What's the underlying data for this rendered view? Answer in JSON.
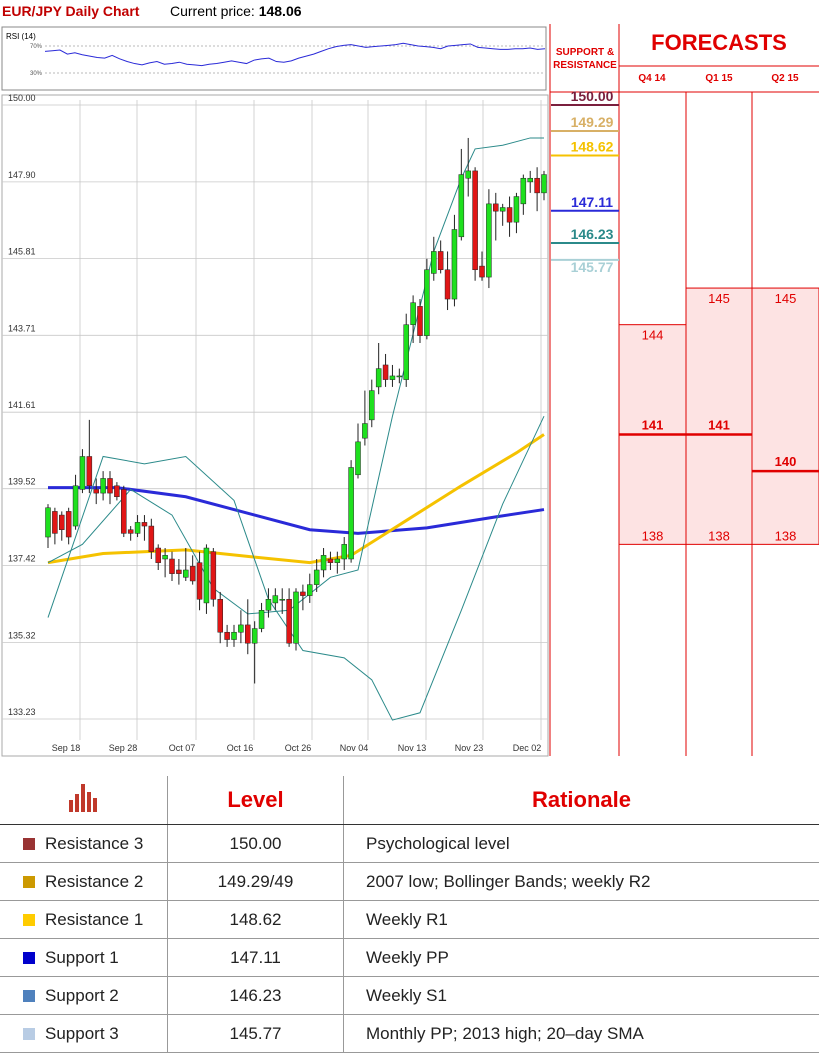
{
  "header": {
    "title": "EUR/JPY Daily Chart",
    "price_label": "Current price:",
    "price_value": "148.06"
  },
  "rsi": {
    "label": "RSI (14)",
    "levels": [
      "70%",
      "30%"
    ],
    "level_values": [
      70,
      30
    ],
    "values": [
      62,
      63,
      64,
      58,
      60,
      57,
      55,
      53,
      52,
      56,
      51,
      47,
      44,
      42,
      45,
      47,
      43,
      44,
      46,
      43,
      42,
      41,
      43,
      44,
      46,
      48,
      46,
      44,
      49,
      51,
      52,
      47,
      46,
      48,
      52,
      55,
      58,
      62,
      66,
      69,
      71,
      72,
      70,
      68,
      69,
      70,
      71,
      72,
      74,
      72,
      70,
      69,
      68,
      66,
      70,
      71,
      72,
      73,
      68,
      67,
      66,
      65,
      65,
      66,
      66,
      67,
      65,
      66
    ]
  },
  "chart_data": {
    "type": "candlestick",
    "title": "EUR/JPY Daily Chart",
    "ylim": [
      133.23,
      150.0
    ],
    "y_ticks": [
      "150.00",
      "147.90",
      "145.81",
      "143.71",
      "141.61",
      "139.52",
      "137.42",
      "135.32",
      "133.23"
    ],
    "x_ticks": [
      "Sep 18",
      "Sep 28",
      "Oct 07",
      "Oct 16",
      "Oct 26",
      "Nov 04",
      "Nov 13",
      "Nov 23",
      "Dec 02"
    ],
    "candles": [
      [
        138.2,
        139.0,
        139.1,
        137.9
      ],
      [
        138.9,
        138.3,
        139.0,
        138.0
      ],
      [
        138.8,
        138.4,
        138.9,
        138.1
      ],
      [
        138.9,
        138.2,
        139.0,
        138.0
      ],
      [
        138.5,
        139.6,
        139.9,
        138.4
      ],
      [
        139.5,
        140.4,
        140.6,
        139.4
      ],
      [
        140.4,
        139.6,
        141.4,
        139.4
      ],
      [
        139.5,
        139.4,
        139.8,
        139.1
      ],
      [
        139.4,
        139.8,
        140.0,
        139.2
      ],
      [
        139.8,
        139.4,
        140.0,
        139.1
      ],
      [
        139.6,
        139.3,
        139.7,
        139.2
      ],
      [
        139.5,
        138.3,
        139.6,
        138.2
      ],
      [
        138.4,
        138.3,
        138.5,
        138.1
      ],
      [
        138.3,
        138.6,
        138.8,
        138.2
      ],
      [
        138.6,
        138.5,
        138.8,
        138.1
      ],
      [
        138.5,
        137.8,
        138.7,
        137.6
      ],
      [
        137.9,
        137.5,
        138.0,
        137.3
      ],
      [
        137.6,
        137.7,
        137.9,
        137.1
      ],
      [
        137.6,
        137.2,
        137.8,
        137.0
      ],
      [
        137.3,
        137.2,
        137.6,
        136.9
      ],
      [
        137.1,
        137.3,
        137.9,
        137.0
      ],
      [
        137.4,
        137.0,
        137.7,
        136.9
      ],
      [
        137.5,
        136.5,
        137.8,
        136.2
      ],
      [
        136.4,
        137.9,
        138.0,
        136.1
      ],
      [
        137.8,
        136.5,
        137.9,
        136.3
      ],
      [
        136.5,
        135.6,
        136.7,
        135.3
      ],
      [
        135.6,
        135.4,
        135.8,
        135.2
      ],
      [
        135.4,
        135.6,
        135.8,
        135.2
      ],
      [
        135.6,
        135.8,
        136.2,
        135.3
      ],
      [
        135.8,
        135.3,
        136.5,
        135.0
      ],
      [
        135.3,
        135.7,
        135.9,
        134.2
      ],
      [
        135.7,
        136.2,
        136.4,
        135.6
      ],
      [
        136.2,
        136.5,
        136.8,
        136.0
      ],
      [
        136.4,
        136.6,
        136.8,
        136.2
      ],
      [
        136.5,
        136.5,
        136.8,
        136.1
      ],
      [
        136.5,
        135.3,
        136.8,
        135.2
      ],
      [
        135.3,
        136.7,
        136.8,
        135.1
      ],
      [
        136.7,
        136.6,
        136.9,
        136.2
      ],
      [
        136.6,
        136.9,
        137.2,
        136.4
      ],
      [
        136.9,
        137.3,
        137.6,
        136.7
      ],
      [
        137.3,
        137.7,
        137.9,
        137.1
      ],
      [
        137.6,
        137.5,
        137.8,
        137.3
      ],
      [
        137.5,
        137.6,
        137.8,
        137.2
      ],
      [
        137.6,
        138.0,
        138.2,
        137.3
      ],
      [
        137.6,
        140.1,
        140.3,
        137.5
      ],
      [
        139.9,
        140.8,
        141.3,
        139.8
      ],
      [
        140.9,
        141.3,
        142.2,
        140.7
      ],
      [
        141.4,
        142.2,
        142.5,
        141.2
      ],
      [
        142.3,
        142.8,
        143.5,
        142.1
      ],
      [
        142.9,
        142.5,
        143.2,
        142.3
      ],
      [
        142.5,
        142.6,
        142.9,
        142.3
      ],
      [
        142.6,
        142.6,
        142.8,
        142.4
      ],
      [
        142.5,
        144.0,
        144.3,
        142.3
      ],
      [
        144.0,
        144.6,
        144.8,
        143.5
      ],
      [
        144.5,
        143.7,
        144.7,
        143.5
      ],
      [
        143.7,
        145.5,
        145.8,
        143.6
      ],
      [
        145.4,
        146.0,
        146.4,
        145.2
      ],
      [
        146.0,
        145.5,
        146.3,
        145.4
      ],
      [
        145.5,
        144.7,
        146.0,
        144.4
      ],
      [
        144.7,
        146.6,
        147.0,
        144.5
      ],
      [
        146.4,
        148.1,
        148.8,
        146.3
      ],
      [
        148.0,
        148.2,
        149.1,
        147.5
      ],
      [
        148.2,
        145.5,
        148.3,
        145.2
      ],
      [
        145.6,
        145.3,
        146.0,
        145.2
      ],
      [
        145.3,
        147.3,
        147.7,
        145.0
      ],
      [
        147.3,
        147.1,
        147.6,
        146.3
      ],
      [
        147.1,
        147.2,
        147.3,
        146.7
      ],
      [
        147.2,
        146.8,
        147.5,
        146.4
      ],
      [
        146.8,
        147.5,
        147.6,
        146.5
      ],
      [
        147.3,
        148.0,
        148.1,
        147.0
      ],
      [
        147.9,
        148.0,
        148.2,
        147.6
      ],
      [
        148.0,
        147.6,
        148.3,
        147.1
      ],
      [
        147.6,
        148.1,
        148.2,
        147.4
      ]
    ],
    "series": [
      {
        "name": "",
        "color": "#2a2ad8",
        "values": [
          [
            0,
            139.55
          ],
          [
            10,
            139.55
          ],
          [
            20,
            139.3
          ],
          [
            30,
            138.8
          ],
          [
            38,
            138.4
          ],
          [
            45,
            138.3
          ],
          [
            55,
            138.45
          ],
          [
            65,
            138.75
          ],
          [
            72,
            138.95
          ]
        ]
      },
      {
        "name": "",
        "color": "#f5c200",
        "values": [
          [
            0,
            137.5
          ],
          [
            8,
            137.75
          ],
          [
            20,
            137.85
          ],
          [
            30,
            137.65
          ],
          [
            38,
            137.5
          ],
          [
            44,
            137.7
          ],
          [
            52,
            138.65
          ],
          [
            60,
            139.6
          ],
          [
            68,
            140.5
          ],
          [
            72,
            141.0
          ]
        ]
      },
      {
        "name": "",
        "color": "#2b8a8a",
        "values": [
          [
            0,
            136.0
          ],
          [
            8,
            140.4
          ],
          [
            14,
            140.2
          ],
          [
            20,
            140.4
          ],
          [
            27,
            139.2
          ],
          [
            32,
            136.5
          ],
          [
            37,
            135.1
          ],
          [
            43,
            134.9
          ],
          [
            47,
            134.3
          ],
          [
            50,
            133.2
          ],
          [
            54,
            133.4
          ],
          [
            60,
            136.2
          ],
          [
            66,
            139.1
          ],
          [
            72,
            141.5
          ]
        ]
      },
      {
        "name": "",
        "color": "#2b8a8a",
        "values": [
          [
            0,
            137.5
          ],
          [
            5,
            138.0
          ],
          [
            12,
            139.5
          ],
          [
            18,
            138.8
          ],
          [
            24,
            136.8
          ],
          [
            29,
            136.1
          ],
          [
            35,
            136.2
          ],
          [
            41,
            137.1
          ],
          [
            45,
            137.3
          ],
          [
            50,
            141.5
          ],
          [
            56,
            146.0
          ],
          [
            60,
            148.0
          ],
          [
            62,
            148.8
          ],
          [
            66,
            148.9
          ],
          [
            70,
            149.1
          ],
          [
            72,
            149.1
          ]
        ]
      }
    ]
  },
  "side_levels": {
    "header": "SUPPORT & RESISTANCE",
    "items": [
      {
        "value": 150.0,
        "text": "150.00",
        "color": "#7a1f3d"
      },
      {
        "value": 149.29,
        "text": "149.29",
        "color": "#d8b066"
      },
      {
        "value": 148.62,
        "text": "148.62",
        "color": "#f5c200"
      },
      {
        "value": 147.11,
        "text": "147.11",
        "color": "#2a2ad8"
      },
      {
        "value": 146.23,
        "text": "146.23",
        "color": "#2b8a8a"
      },
      {
        "value": 145.77,
        "text": "145.77",
        "color": "#a9d0d6"
      }
    ]
  },
  "forecasts": {
    "title": "FORECASTS",
    "quarters": [
      {
        "label": "Q4 14",
        "high": "144",
        "mid": "141",
        "low": "138",
        "high_v": 144,
        "mid_v": 141,
        "low_v": 138
      },
      {
        "label": "Q1 15",
        "high": "145",
        "mid": "141",
        "low": "138",
        "high_v": 145,
        "mid_v": 141,
        "low_v": 138
      },
      {
        "label": "Q2 15",
        "high": "145",
        "mid": "140",
        "low": "138",
        "high_v": 145,
        "mid_v": 140,
        "low_v": 138
      }
    ]
  },
  "level_table": {
    "col_level": "Level",
    "col_rationale": "Rationale",
    "rows": [
      {
        "name": "Resistance 3",
        "level": "150.00",
        "rationale": "Psychological level",
        "color": "#993333"
      },
      {
        "name": "Resistance 2",
        "level": "149.29/49",
        "rationale": "2007 low; Bollinger Bands; weekly R2",
        "color": "#cc9900"
      },
      {
        "name": "Resistance 1",
        "level": "148.62",
        "rationale": "Weekly R1",
        "color": "#ffcc00"
      },
      {
        "name": "Support 1",
        "level": "147.11",
        "rationale": "Weekly PP",
        "color": "#0000cc"
      },
      {
        "name": "Support 2",
        "level": "146.23",
        "rationale": "Weekly S1",
        "color": "#4f81bd"
      },
      {
        "name": "Support 3",
        "level": "145.77",
        "rationale": "Monthly PP; 2013 high; 20–day SMA",
        "color": "#b8cce4"
      }
    ]
  }
}
